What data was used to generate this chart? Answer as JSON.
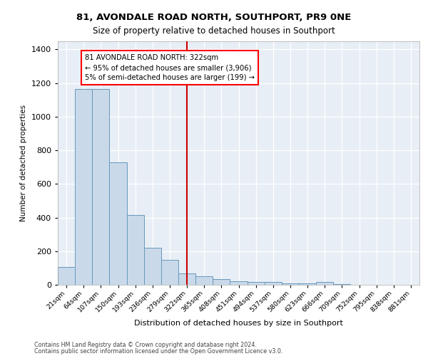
{
  "title1": "81, AVONDALE ROAD NORTH, SOUTHPORT, PR9 0NE",
  "title2": "Size of property relative to detached houses in Southport",
  "xlabel": "Distribution of detached houses by size in Southport",
  "ylabel": "Number of detached properties",
  "bar_labels": [
    "21sqm",
    "64sqm",
    "107sqm",
    "150sqm",
    "193sqm",
    "236sqm",
    "279sqm",
    "322sqm",
    "365sqm",
    "408sqm",
    "451sqm",
    "494sqm",
    "537sqm",
    "580sqm",
    "623sqm",
    "666sqm",
    "709sqm",
    "752sqm",
    "795sqm",
    "838sqm",
    "881sqm"
  ],
  "heights": [
    107,
    1163,
    1163,
    730,
    415,
    220,
    150,
    68,
    50,
    32,
    20,
    15,
    15,
    10,
    10,
    15,
    5,
    0,
    0,
    0,
    0
  ],
  "bar_color": "#c9d9ea",
  "bar_edge_color": "#6699bb",
  "vline_color": "#cc0000",
  "annotation_text": "81 AVONDALE ROAD NORTH: 322sqm\n← 95% of detached houses are smaller (3,906)\n5% of semi-detached houses are larger (199) →",
  "ylim": [
    0,
    1450
  ],
  "yticks": [
    0,
    200,
    400,
    600,
    800,
    1000,
    1200,
    1400
  ],
  "footer1": "Contains HM Land Registry data © Crown copyright and database right 2024.",
  "footer2": "Contains public sector information licensed under the Open Government Licence v3.0.",
  "plot_bg_color": "#e8eef5",
  "grid_color": "#ffffff"
}
